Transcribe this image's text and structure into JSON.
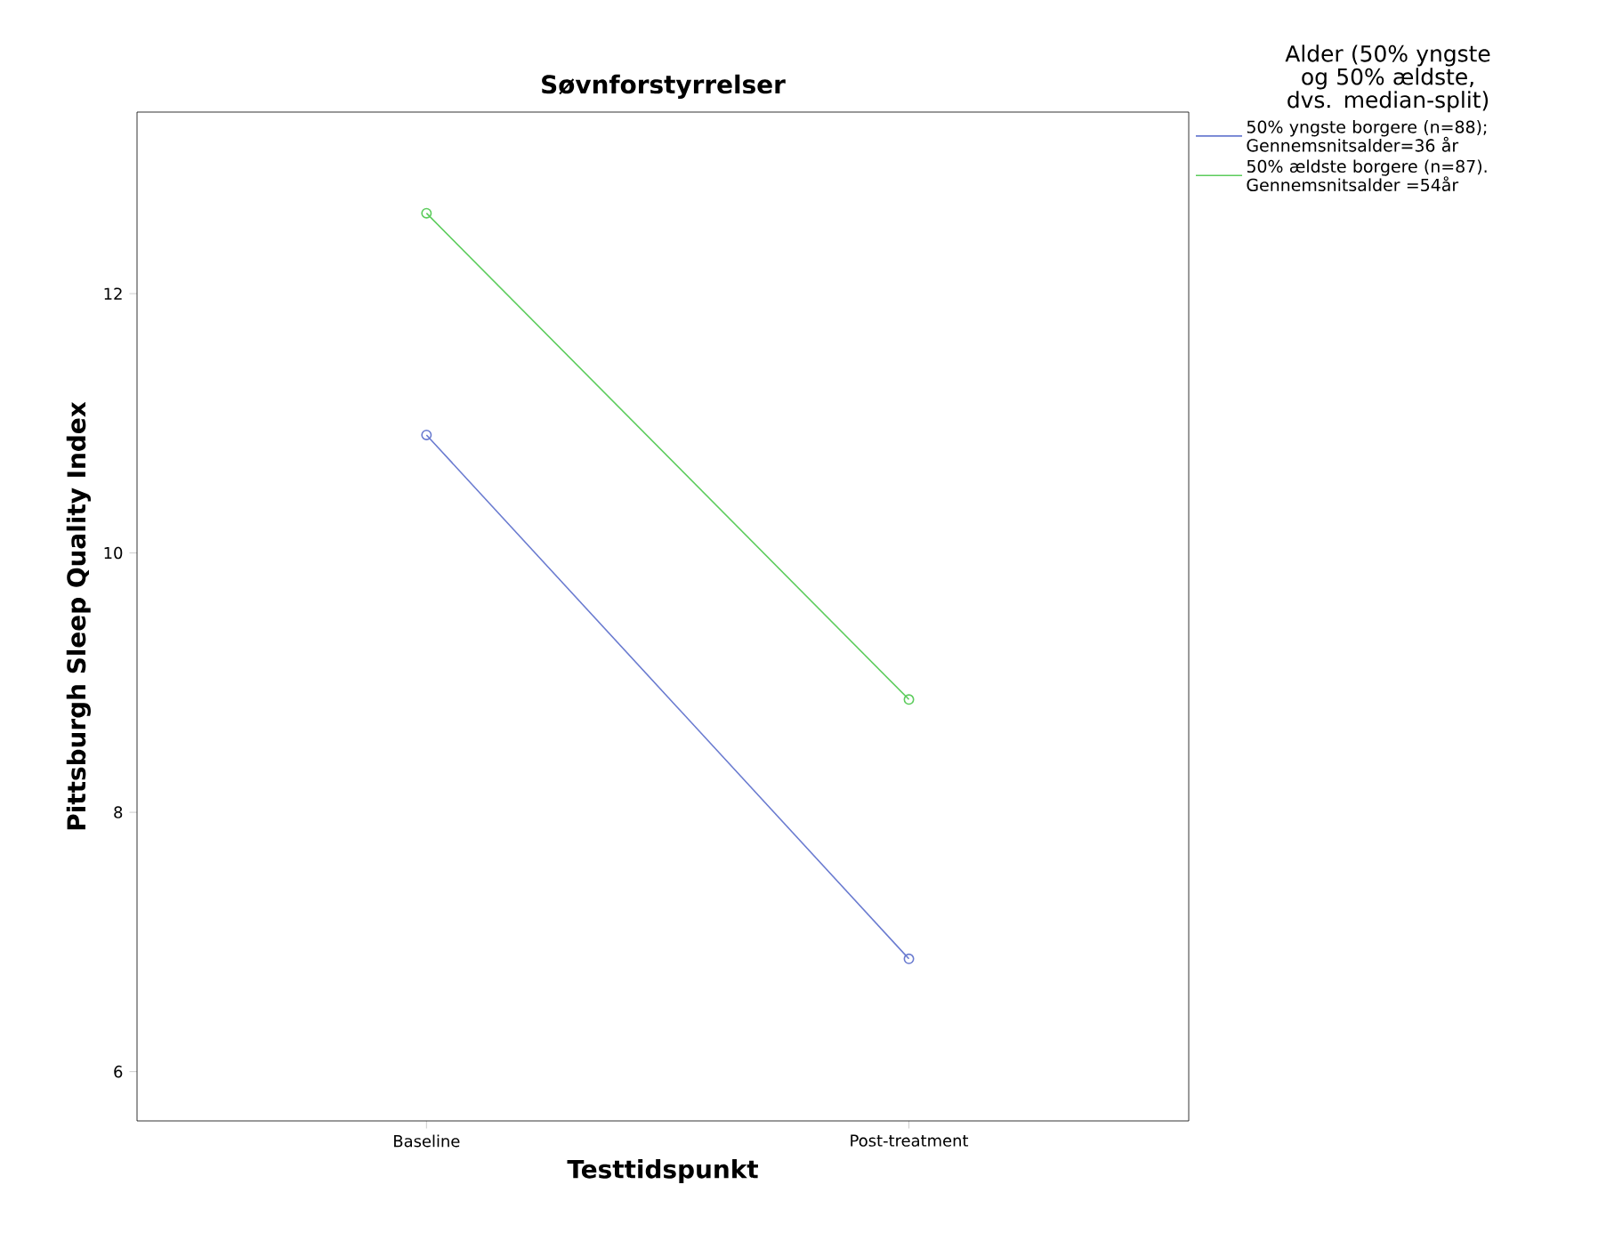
{
  "chart_data": {
    "type": "line",
    "title": "Søvnforstyrrelser",
    "xlabel": "Testtidspunkt",
    "ylabel": "Pittsburgh Sleep Quality Index",
    "legend_title": "Alder (50% yngste og 50% ældste, dvs. median-split)",
    "categories": [
      "Baseline",
      "Post-treatment"
    ],
    "series": [
      {
        "name": "50% yngste borgere (n=88); Gennemsnitsalder=36 år",
        "color": "#6a7bd0",
        "values": [
          10.91,
          6.87
        ]
      },
      {
        "name": "50% ældste borgere (n=87). Gennemsnitsalder =54år",
        "color": "#5ccc5c",
        "values": [
          12.62,
          8.87
        ]
      }
    ],
    "ylim": [
      5.62,
      13.4
    ],
    "yticks": [
      6,
      8,
      10,
      12
    ],
    "marker": "circle",
    "legend": "top right",
    "grid": false
  }
}
